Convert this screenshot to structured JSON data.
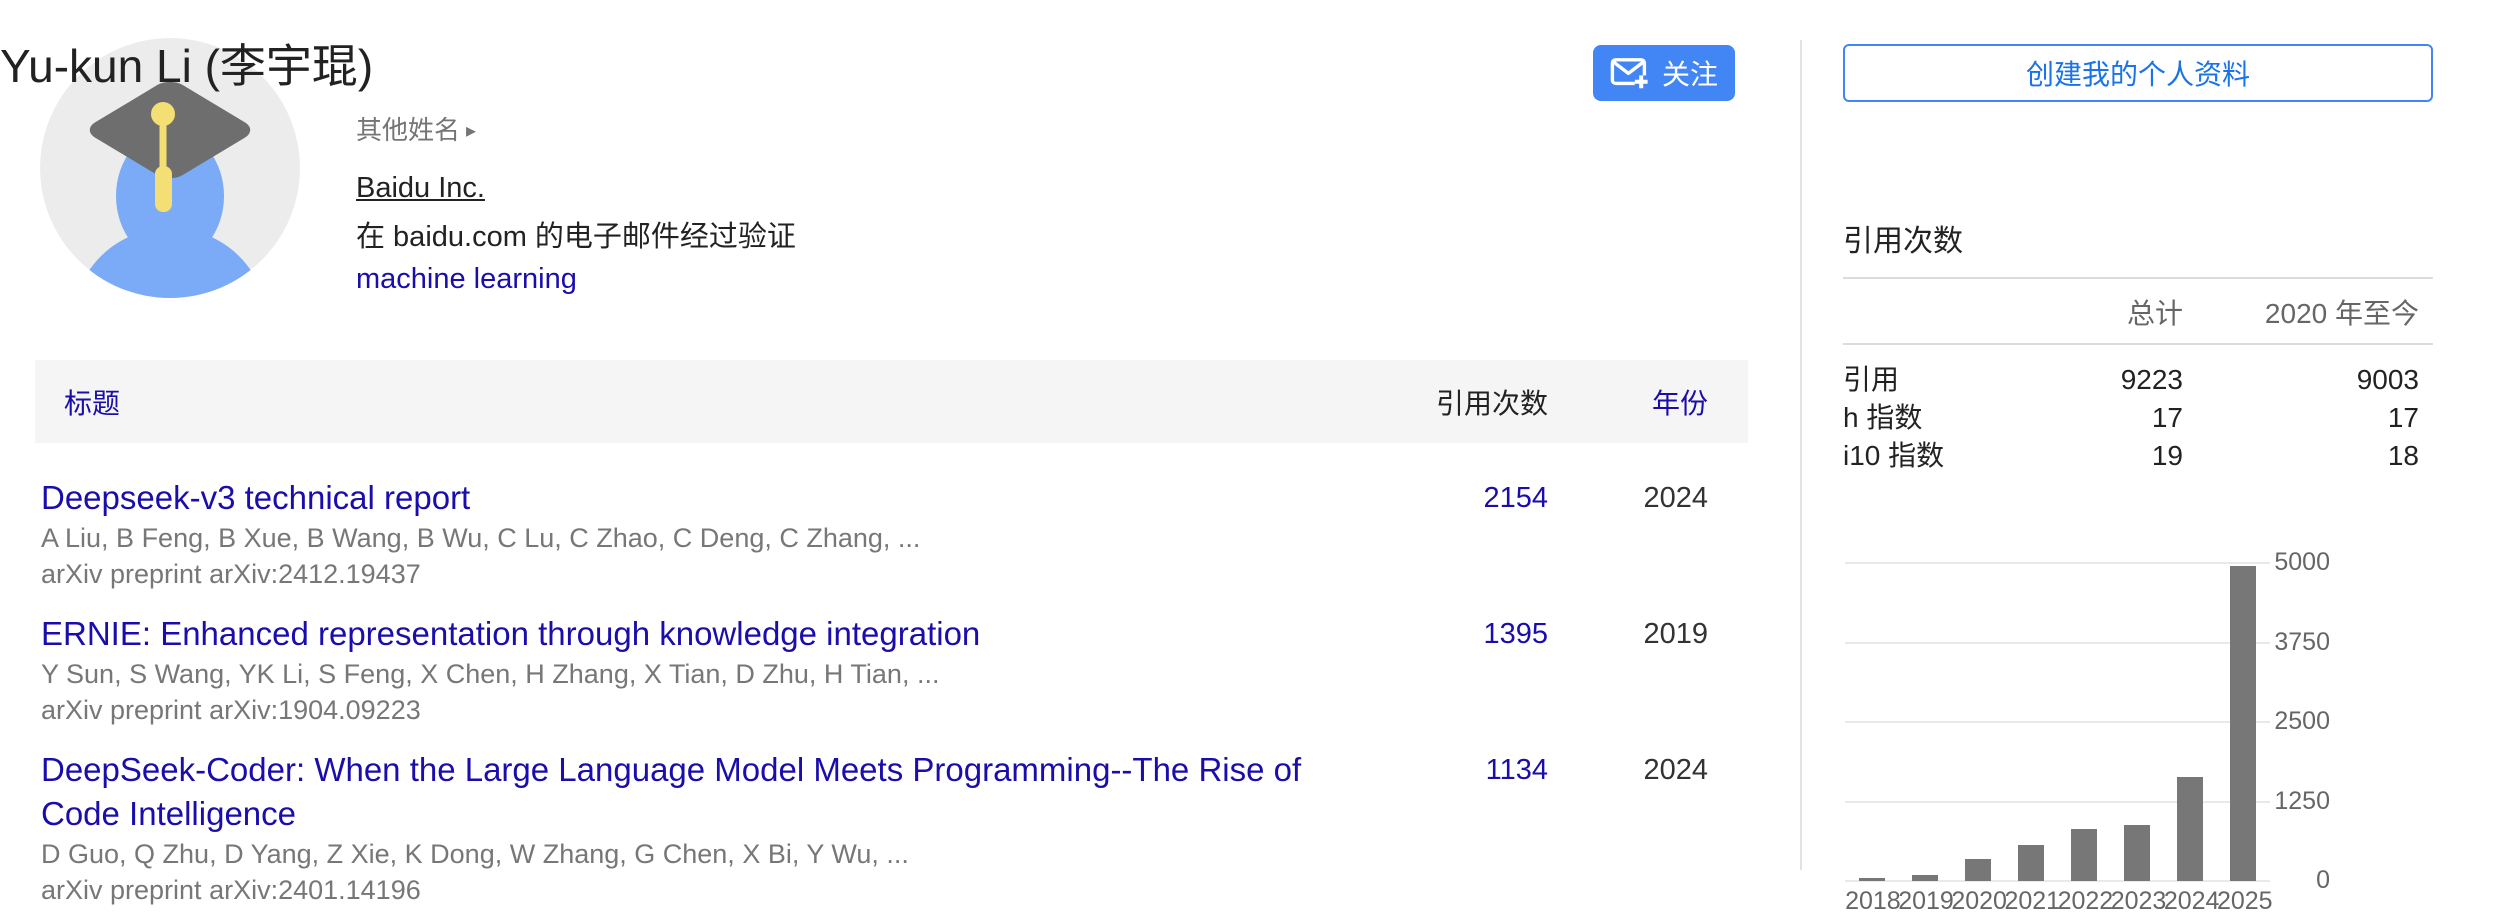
{
  "profile": {
    "name": "Yu-kun Li (李宇琨)",
    "other_names_label": "其他姓名",
    "affiliation": "Baidu Inc.",
    "email_verified": "在 baidu.com 的电子邮件经过验证",
    "interest": "machine learning",
    "follow_label": "关注"
  },
  "sidebar": {
    "create_profile_label": "创建我的个人资料",
    "cited_by": {
      "title": "引用次数",
      "col_all": "总计",
      "col_since": "2020 年至今",
      "rows": [
        {
          "label": "引用",
          "all": "9223",
          "since": "9003"
        },
        {
          "label": "h 指数",
          "all": "17",
          "since": "17"
        },
        {
          "label": "i10 指数",
          "all": "19",
          "since": "18"
        }
      ]
    }
  },
  "table": {
    "header_title": "标题",
    "header_cited_by": "引用次数",
    "header_year": "年份"
  },
  "articles": {
    "items": [
      {
        "title": "Deepseek-v3 technical report",
        "authors": "A Liu, B Feng, B Xue, B Wang, B Wu, C Lu, C Zhao, C Deng, C Zhang, ...",
        "venue": "arXiv preprint arXiv:2412.19437",
        "cited_by": "2154",
        "year": "2024"
      },
      {
        "title": "ERNIE: Enhanced representation through knowledge integration",
        "authors": "Y Sun, S Wang, YK Li, S Feng, X Chen, H Zhang, X Tian, D Zhu, H Tian, ...",
        "venue": "arXiv preprint arXiv:1904.09223",
        "cited_by": "1395",
        "year": "2019"
      },
      {
        "title": "DeepSeek-Coder: When the Large Language Model Meets Programming--The Rise of Code Intelligence",
        "authors": "D Guo, Q Zhu, D Yang, Z Xie, K Dong, W Zhang, G Chen, X Bi, Y Wu, ...",
        "venue": "arXiv preprint arXiv:2401.14196",
        "cited_by": "1134",
        "year": "2024"
      }
    ]
  },
  "chart_data": {
    "type": "bar",
    "title": "引用次数",
    "categories": [
      "2018",
      "2019",
      "2020",
      "2021",
      "2022",
      "2023",
      "2024",
      "2025"
    ],
    "values": [
      40,
      90,
      340,
      560,
      820,
      880,
      1630,
      4950
    ],
    "ylim": [
      0,
      5000
    ],
    "yticks": [
      0,
      1250,
      2500,
      3750,
      5000
    ],
    "ytick_side": "right",
    "grid": true,
    "bar_color": "#777777",
    "xlabel": "",
    "ylabel": ""
  },
  "icons": {
    "follow": "email-plus-icon",
    "other_names_arrow": "expand-arrow-icon",
    "avatar": "graduation-cap-avatar"
  },
  "colors": {
    "accent_blue": "#4285f4",
    "link_blue": "#1a0dab",
    "create_text_blue": "#1a73e8",
    "text": "#222222",
    "muted": "#777777",
    "bar_gray": "#777777",
    "band_gray": "#f5f5f5"
  }
}
